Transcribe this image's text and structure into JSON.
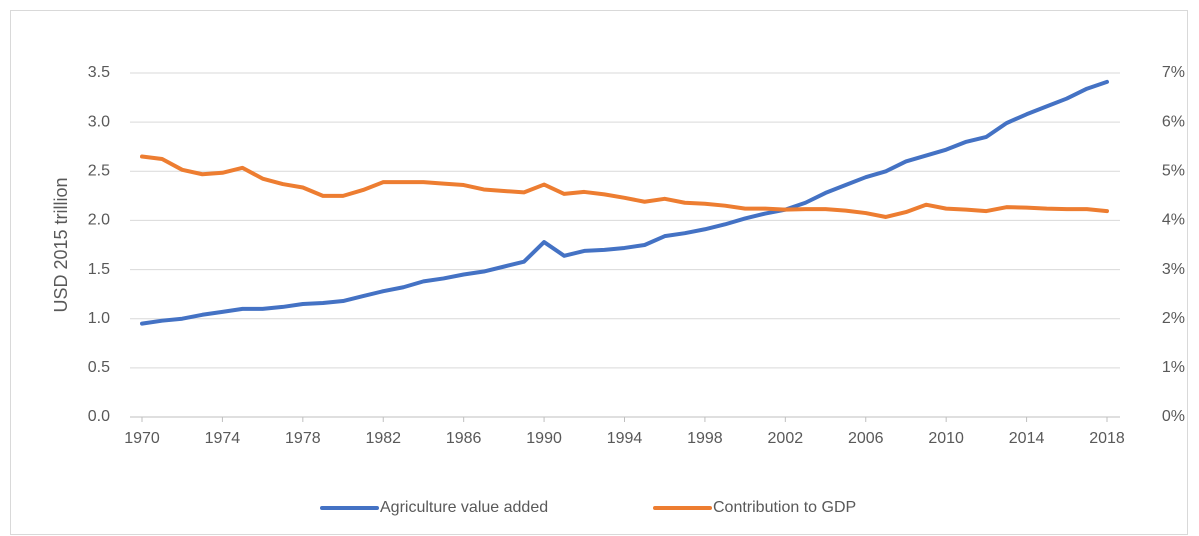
{
  "chart_data": {
    "type": "line",
    "ylabel": "USD 2015 trillion",
    "x": [
      1970,
      1971,
      1972,
      1973,
      1974,
      1975,
      1976,
      1977,
      1978,
      1979,
      1980,
      1981,
      1982,
      1983,
      1984,
      1985,
      1986,
      1987,
      1988,
      1989,
      1990,
      1991,
      1992,
      1993,
      1994,
      1995,
      1996,
      1997,
      1998,
      1999,
      2000,
      2001,
      2002,
      2003,
      2004,
      2005,
      2006,
      2007,
      2008,
      2009,
      2010,
      2011,
      2012,
      2013,
      2014,
      2015,
      2016,
      2017,
      2018
    ],
    "xlim": [
      1970,
      2018
    ],
    "xticks": [
      1970,
      1974,
      1978,
      1982,
      1986,
      1990,
      1994,
      1998,
      2002,
      2006,
      2010,
      2014,
      2018
    ],
    "ylim": [
      0,
      3.5
    ],
    "yticks": [
      {
        "value": 0,
        "label": "0.0"
      },
      0.5,
      {
        "value": 1,
        "label": "1.0"
      },
      1.5,
      {
        "value": 2,
        "label": "2.0"
      },
      2.5,
      {
        "value": 3,
        "label": "3.0"
      },
      3.5
    ],
    "y2lim": [
      0,
      7
    ],
    "y2ticks": [
      {
        "value": 0,
        "label": "0%"
      },
      {
        "value": 1,
        "label": "1%"
      },
      {
        "value": 2,
        "label": "2%"
      },
      {
        "value": 3,
        "label": "3%"
      },
      {
        "value": 4,
        "label": "4%"
      },
      {
        "value": 5,
        "label": "5%"
      },
      {
        "value": 6,
        "label": "6%"
      },
      {
        "value": 7,
        "label": "7%"
      }
    ],
    "grid": true,
    "legend": "bottom",
    "series": [
      {
        "name": "Agriculture value added",
        "color": "#4472c4",
        "axis": "y",
        "values": [
          0.95,
          0.98,
          1.0,
          1.04,
          1.07,
          1.1,
          1.1,
          1.12,
          1.15,
          1.16,
          1.18,
          1.23,
          1.28,
          1.32,
          1.38,
          1.41,
          1.45,
          1.48,
          1.53,
          1.58,
          1.78,
          1.64,
          1.69,
          1.7,
          1.72,
          1.75,
          1.84,
          1.87,
          1.91,
          1.96,
          2.02,
          2.07,
          2.11,
          2.18,
          2.28,
          2.36,
          2.44,
          2.5,
          2.6,
          2.66,
          2.72,
          2.8,
          2.85,
          2.99,
          3.08,
          3.16,
          3.24,
          3.34,
          3.41
        ]
      },
      {
        "name": "Contribution to GDP",
        "color": "#ed7d31",
        "axis": "y2",
        "values": [
          5.3,
          5.25,
          5.03,
          4.94,
          4.97,
          5.07,
          4.85,
          4.74,
          4.67,
          4.5,
          4.5,
          4.62,
          4.78,
          4.78,
          4.78,
          4.75,
          4.72,
          4.63,
          4.6,
          4.57,
          4.73,
          4.54,
          4.58,
          4.53,
          4.46,
          4.38,
          4.44,
          4.36,
          4.34,
          4.3,
          4.24,
          4.24,
          4.22,
          4.23,
          4.23,
          4.2,
          4.15,
          4.07,
          4.17,
          4.32,
          4.24,
          4.22,
          4.19,
          4.27,
          4.26,
          4.24,
          4.23,
          4.23,
          4.19
        ]
      }
    ]
  }
}
